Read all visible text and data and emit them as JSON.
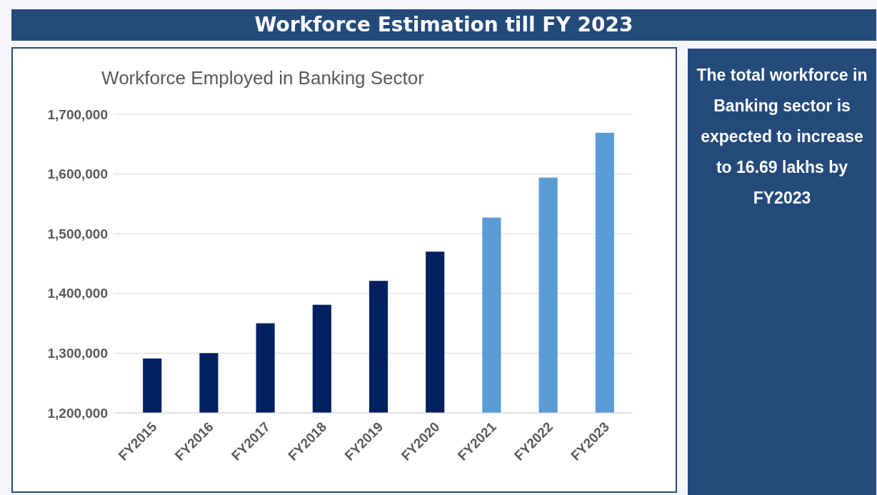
{
  "chart_data": {
    "type": "bar",
    "title": "Workforce Estimation till  FY 2023",
    "subtitle": "Workforce Employed in Banking Sector",
    "categories": [
      "FY2015",
      "FY2016",
      "FY2017",
      "FY2018",
      "FY2019",
      "FY2020",
      "FY2021",
      "FY2022",
      "FY2023"
    ],
    "values": [
      1291000,
      1300000,
      1350000,
      1381000,
      1421000,
      1470000,
      1527000,
      1594000,
      1669000
    ],
    "colors": [
      "#002060",
      "#002060",
      "#002060",
      "#002060",
      "#002060",
      "#002060",
      "#5b9bd5",
      "#5b9bd5",
      "#5b9bd5"
    ],
    "ylim": [
      1200000,
      1700000
    ],
    "yticks": [
      {
        "value": 1200000,
        "label": "1,200,000"
      },
      {
        "value": 1300000,
        "label": "1,300,000"
      },
      {
        "value": 1400000,
        "label": "1,400,000"
      },
      {
        "value": 1500000,
        "label": "1,500,000"
      },
      {
        "value": 1600000,
        "label": "1,600,000"
      },
      {
        "value": 1700000,
        "label": "1,700,000"
      }
    ],
    "grid": "y",
    "annotations": [
      "The total workforce in Banking sector is expected to increase to 16.69 lakhs by FY2023"
    ]
  }
}
